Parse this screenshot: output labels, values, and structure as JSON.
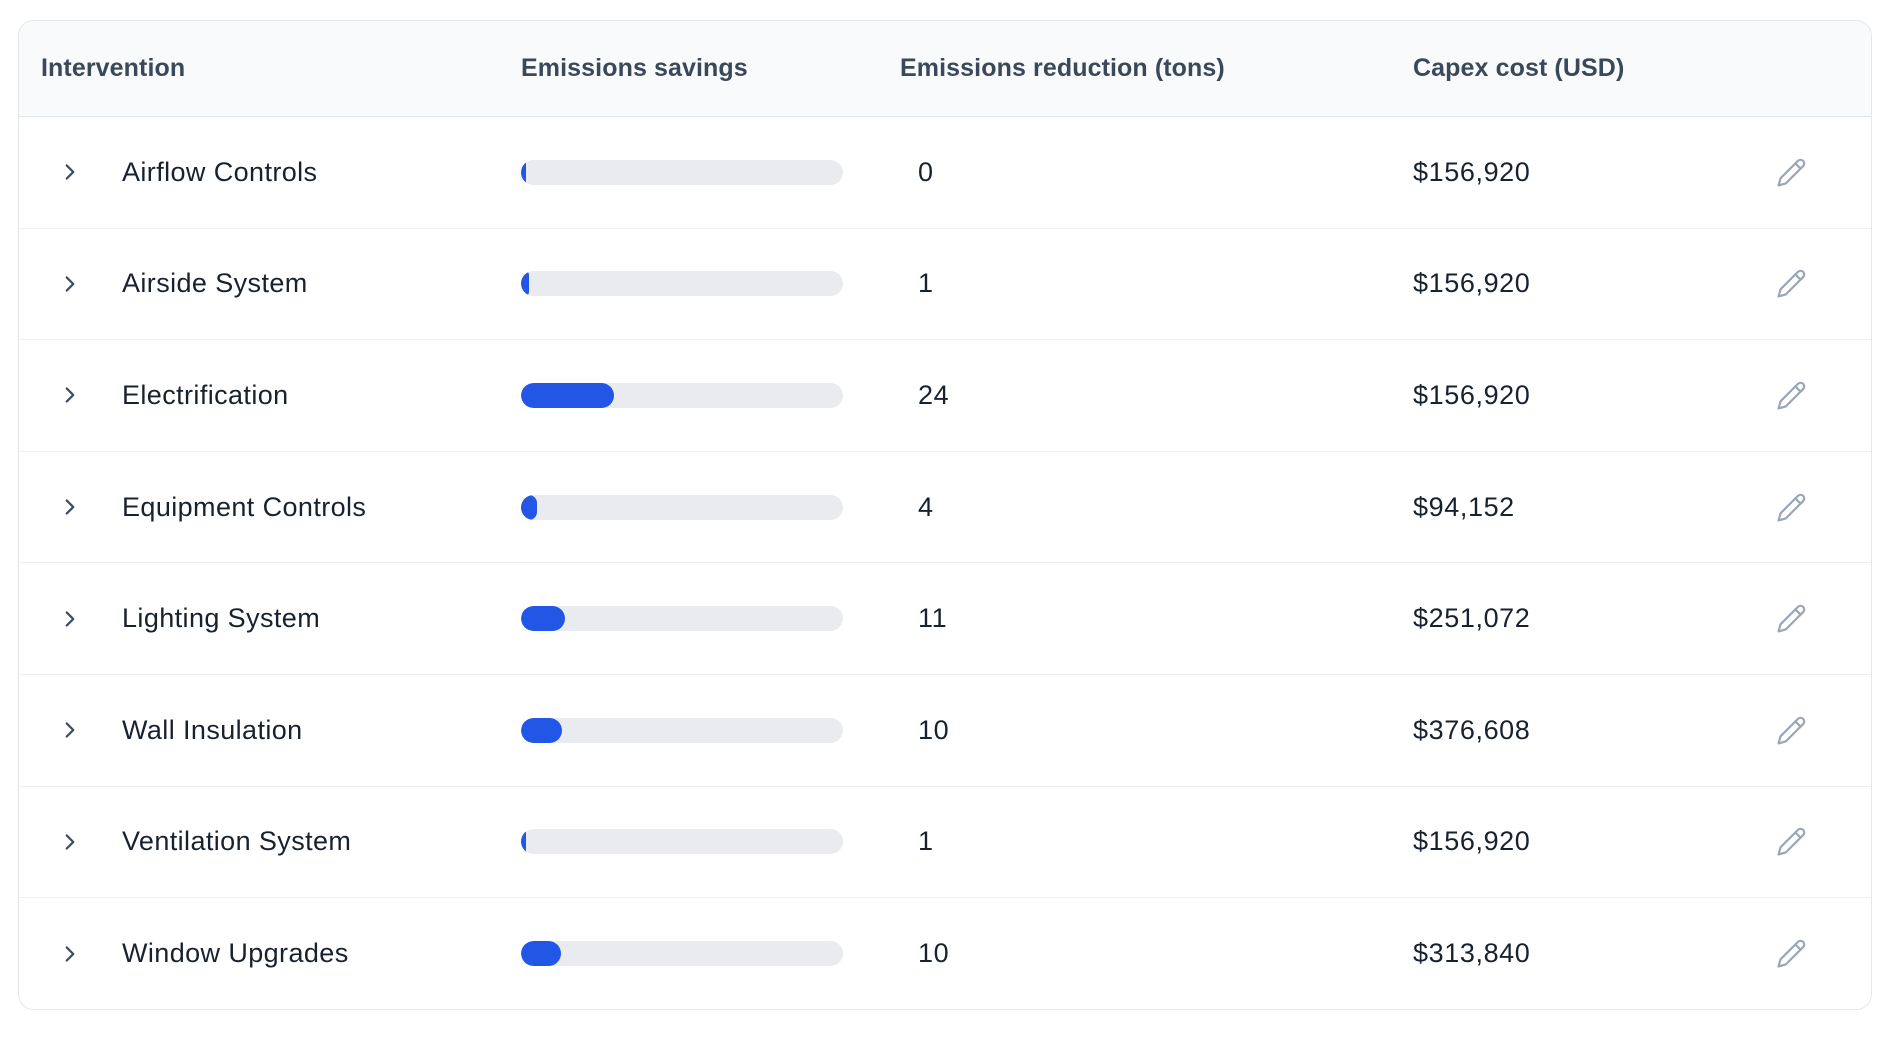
{
  "colors": {
    "accent": "#2257e6",
    "track": "#e9ebee",
    "header-bg": "#f8fafc",
    "header-text": "#3b4859",
    "cell-text": "#18222f",
    "card-border": "#e3e7ed",
    "row-divider": "#edeff3",
    "chevron": "#3d4b61",
    "pencil": "#9aa6b6"
  },
  "table": {
    "columns": {
      "intervention": "Intervention",
      "savings": "Emissions savings",
      "reduction": "Emissions reduction (tons)",
      "capex": "Capex cost (USD)"
    },
    "rows": [
      {
        "name": "Airflow Controls",
        "savings_percent": 1.6,
        "reduction_tons": "0",
        "capex": "$156,920"
      },
      {
        "name": "Airside System",
        "savings_percent": 2.5,
        "reduction_tons": "1",
        "capex": "$156,920"
      },
      {
        "name": "Electrification",
        "savings_percent": 28.9,
        "reduction_tons": "24",
        "capex": "$156,920"
      },
      {
        "name": "Equipment Controls",
        "savings_percent": 5.0,
        "reduction_tons": "4",
        "capex": "$94,152"
      },
      {
        "name": "Lighting System",
        "savings_percent": 13.7,
        "reduction_tons": "11",
        "capex": "$251,072"
      },
      {
        "name": "Wall Insulation",
        "savings_percent": 12.7,
        "reduction_tons": "10",
        "capex": "$376,608"
      },
      {
        "name": "Ventilation System",
        "savings_percent": 1.6,
        "reduction_tons": "1",
        "capex": "$156,920"
      },
      {
        "name": "Window Upgrades",
        "savings_percent": 12.4,
        "reduction_tons": "10",
        "capex": "$313,840"
      }
    ]
  },
  "icons": {
    "row_expand": "chevron-right-icon",
    "row_edit": "pencil-icon"
  }
}
